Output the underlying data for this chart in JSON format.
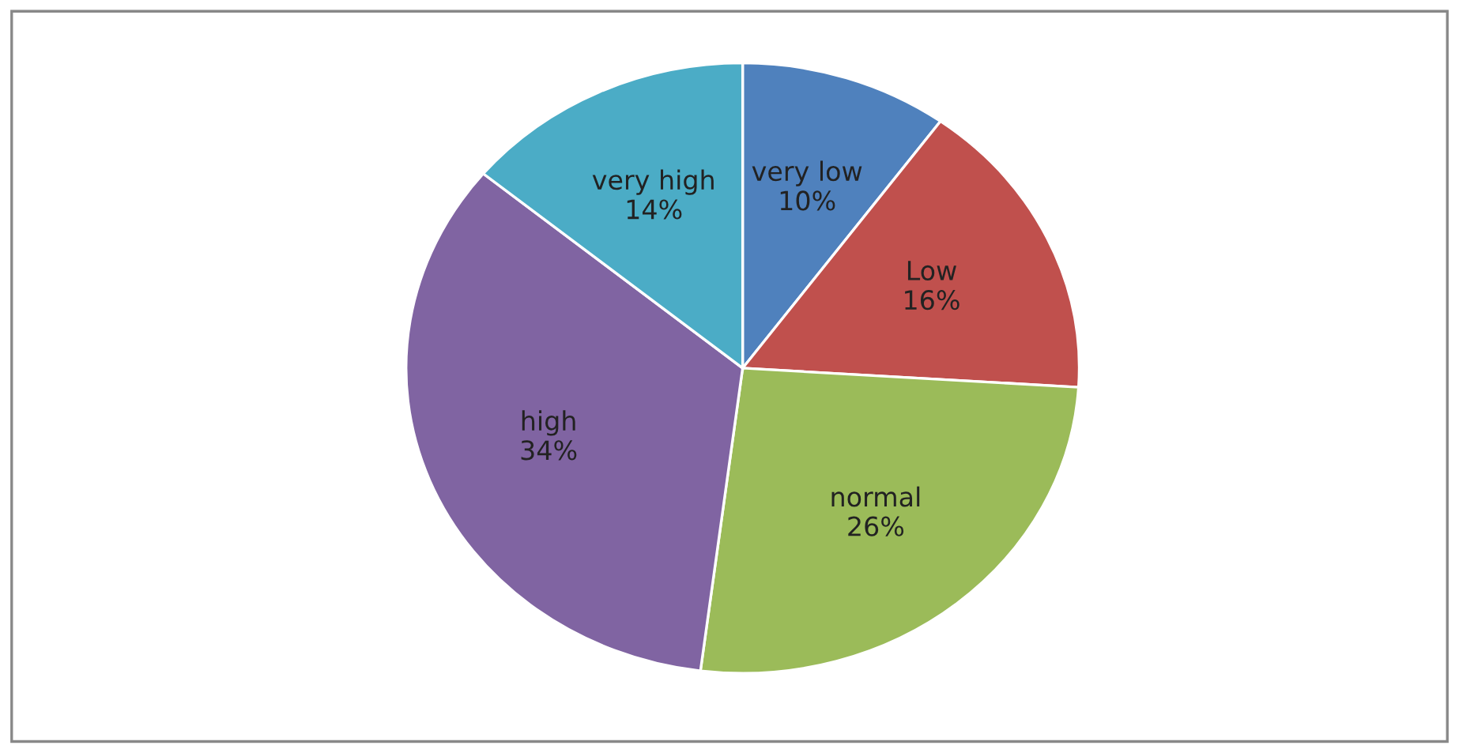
{
  "chart_data": {
    "type": "pie",
    "categories": [
      "very low",
      "Low",
      "normal",
      "high",
      "very high"
    ],
    "values": [
      10,
      16,
      26,
      34,
      14
    ],
    "value_labels": [
      "10%",
      "16%",
      "26%",
      "34%",
      "14%"
    ],
    "colors": [
      "#4f81bd",
      "#c0504d",
      "#9bbb59",
      "#8064a2",
      "#4bacc6"
    ],
    "legend": false
  }
}
